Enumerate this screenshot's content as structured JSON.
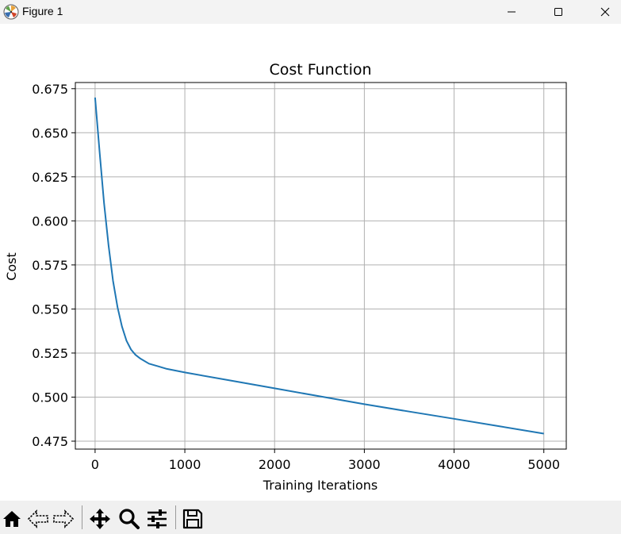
{
  "window": {
    "title": "Figure 1",
    "minimize_icon": "minimize-icon",
    "maximize_icon": "maximize-icon",
    "close_icon": "close-icon"
  },
  "toolbar": {
    "icons": [
      "home-icon",
      "back-icon",
      "forward-icon",
      "pan-icon",
      "zoom-icon",
      "configure-subplots-icon",
      "save-icon"
    ]
  },
  "chart_data": {
    "type": "line",
    "title": "Cost Function",
    "xlabel": "Training Iterations",
    "ylabel": "Cost",
    "xlim": [
      -220,
      5250
    ],
    "ylim": [
      0.4705,
      0.6785
    ],
    "x_ticks": [
      0,
      1000,
      2000,
      3000,
      4000,
      5000
    ],
    "x_tick_labels": [
      "0",
      "1000",
      "2000",
      "3000",
      "4000",
      "5000"
    ],
    "y_ticks": [
      0.475,
      0.5,
      0.525,
      0.55,
      0.575,
      0.6,
      0.625,
      0.65,
      0.675
    ],
    "y_tick_labels": [
      "0.475",
      "0.500",
      "0.525",
      "0.550",
      "0.575",
      "0.600",
      "0.625",
      "0.650",
      "0.675"
    ],
    "grid": true,
    "series": [
      {
        "color": "#1f77b4",
        "x": [
          0,
          50,
          100,
          150,
          200,
          250,
          300,
          350,
          400,
          450,
          500,
          600,
          700,
          800,
          1000,
          1500,
          2000,
          2500,
          3000,
          3500,
          4000,
          4500,
          5000
        ],
        "y": [
          0.67,
          0.639,
          0.61,
          0.586,
          0.566,
          0.551,
          0.54,
          0.532,
          0.527,
          0.524,
          0.522,
          0.519,
          0.5175,
          0.516,
          0.514,
          0.5095,
          0.505,
          0.5005,
          0.496,
          0.4918,
          0.4877,
          0.4835,
          0.4793
        ]
      }
    ]
  }
}
